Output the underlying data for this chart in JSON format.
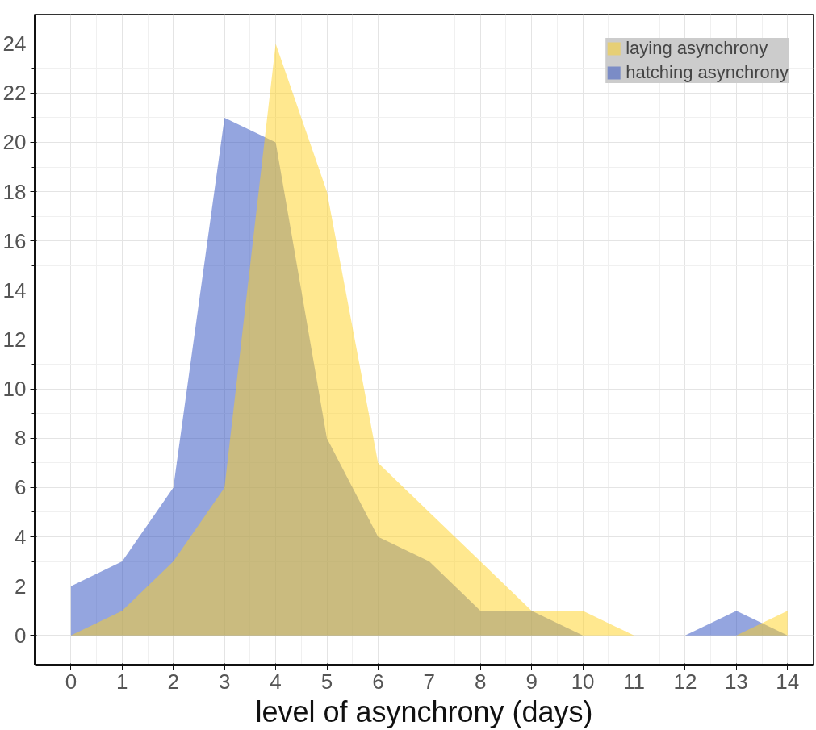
{
  "chart_data": {
    "type": "area",
    "xlabel": "level of asynchrony (days)",
    "x": [
      0,
      1,
      2,
      3,
      4,
      5,
      6,
      7,
      8,
      9,
      10,
      11,
      12,
      13,
      14
    ],
    "series": [
      {
        "name": "hatching asynchrony",
        "color": "#2a4bbf",
        "values": [
          2,
          3,
          6,
          21,
          20,
          8,
          4,
          3,
          1,
          1,
          0,
          0,
          0,
          1,
          0
        ]
      },
      {
        "name": "laying asynchrony",
        "color": "#ffd21f",
        "values": [
          0,
          1,
          3,
          6,
          24,
          18,
          7,
          5,
          3,
          1,
          1,
          0,
          0,
          0,
          1
        ]
      }
    ],
    "xlim": [
      -0.7,
      14.5
    ],
    "ylim": [
      -1.2,
      25.2
    ],
    "xticks": [
      0,
      1,
      2,
      3,
      4,
      5,
      6,
      7,
      8,
      9,
      10,
      11,
      12,
      13,
      14
    ],
    "yticks": [
      0,
      2,
      4,
      6,
      8,
      10,
      12,
      14,
      16,
      18,
      20,
      22,
      24
    ],
    "grid": true,
    "legend": "top right"
  }
}
